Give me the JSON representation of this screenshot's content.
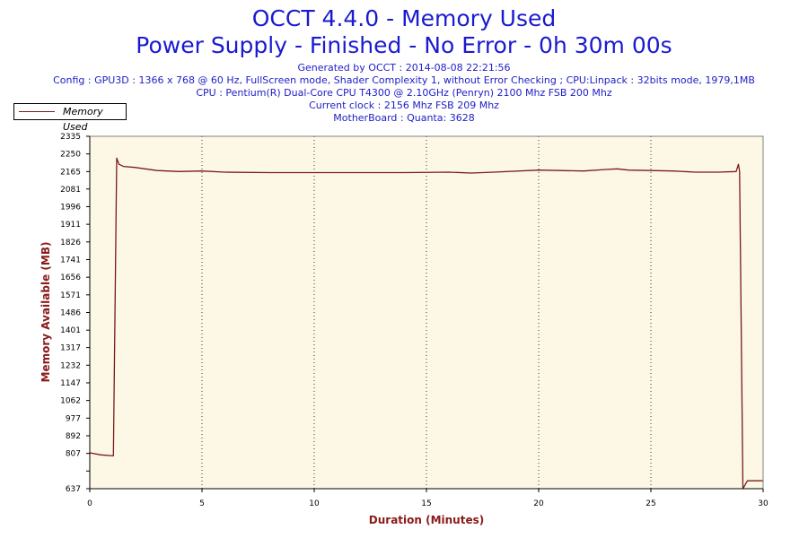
{
  "header": {
    "title_line1": "OCCT 4.4.0 - Memory Used",
    "title_line2": "Power Supply - Finished - No Error - 0h 30m 00s",
    "info_lines": [
      "Generated by OCCT : 2014-08-08 22:21:56",
      "Config : GPU3D : 1366 x 768 @ 60 Hz, FullScreen mode, Shader Complexity 1, without Error Checking ; CPU:Linpack : 32bits mode, 1979,1MB",
      "CPU : Pentium(R) Dual-Core CPU T4300 @ 2.10GHz (Penryn) 2100 Mhz FSB 200 Mhz",
      "Current clock : 2156 Mhz FSB 209 Mhz",
      "MotherBoard : Quanta: 3628"
    ]
  },
  "legend": {
    "label": "Memory Used"
  },
  "colors": {
    "line": "#7a1a1a",
    "plot_bg": "#fdf8e6",
    "axis_title": "#8b1a1a",
    "title": "#1a1ad0"
  },
  "chart_data": {
    "type": "line",
    "xlabel": "Duration (Minutes)",
    "ylabel": "Memory Available (MB)",
    "xlim": [
      0,
      30
    ],
    "ylim": [
      637,
      2335
    ],
    "x_ticks": [
      0,
      5,
      10,
      15,
      20,
      25,
      30
    ],
    "y_ticks": [
      637,
      722,
      807,
      892,
      977,
      1062,
      1147,
      1232,
      1317,
      1401,
      1486,
      1571,
      1656,
      1741,
      1826,
      1911,
      1996,
      2081,
      2165,
      2250,
      2335
    ],
    "y_tick_labels": [
      "637",
      "",
      "807",
      "892",
      "977",
      "1062",
      "1147",
      "1232",
      "1317",
      "1401",
      "1486",
      "1571",
      "1656",
      "1741",
      "1826",
      "1911",
      "1996",
      "2081",
      "2165",
      "2250",
      "2335"
    ],
    "grid": "vertical dotted",
    "series": [
      {
        "name": "Memory Used",
        "x": [
          0,
          0.5,
          1.05,
          1.2,
          1.3,
          1.5,
          2,
          3,
          4,
          5,
          6,
          8,
          10,
          12,
          14,
          16,
          17,
          18,
          20,
          21,
          22,
          23,
          23.5,
          24,
          25,
          26,
          27,
          28,
          28.8,
          28.9,
          28.95,
          29.1,
          29.3,
          29.5,
          30
        ],
        "y": [
          810,
          800,
          795,
          2230,
          2200,
          2190,
          2185,
          2170,
          2165,
          2168,
          2162,
          2160,
          2160,
          2160,
          2160,
          2162,
          2158,
          2162,
          2172,
          2170,
          2168,
          2175,
          2178,
          2172,
          2170,
          2168,
          2162,
          2162,
          2165,
          2200,
          2165,
          637,
          675,
          675,
          675
        ]
      }
    ]
  }
}
